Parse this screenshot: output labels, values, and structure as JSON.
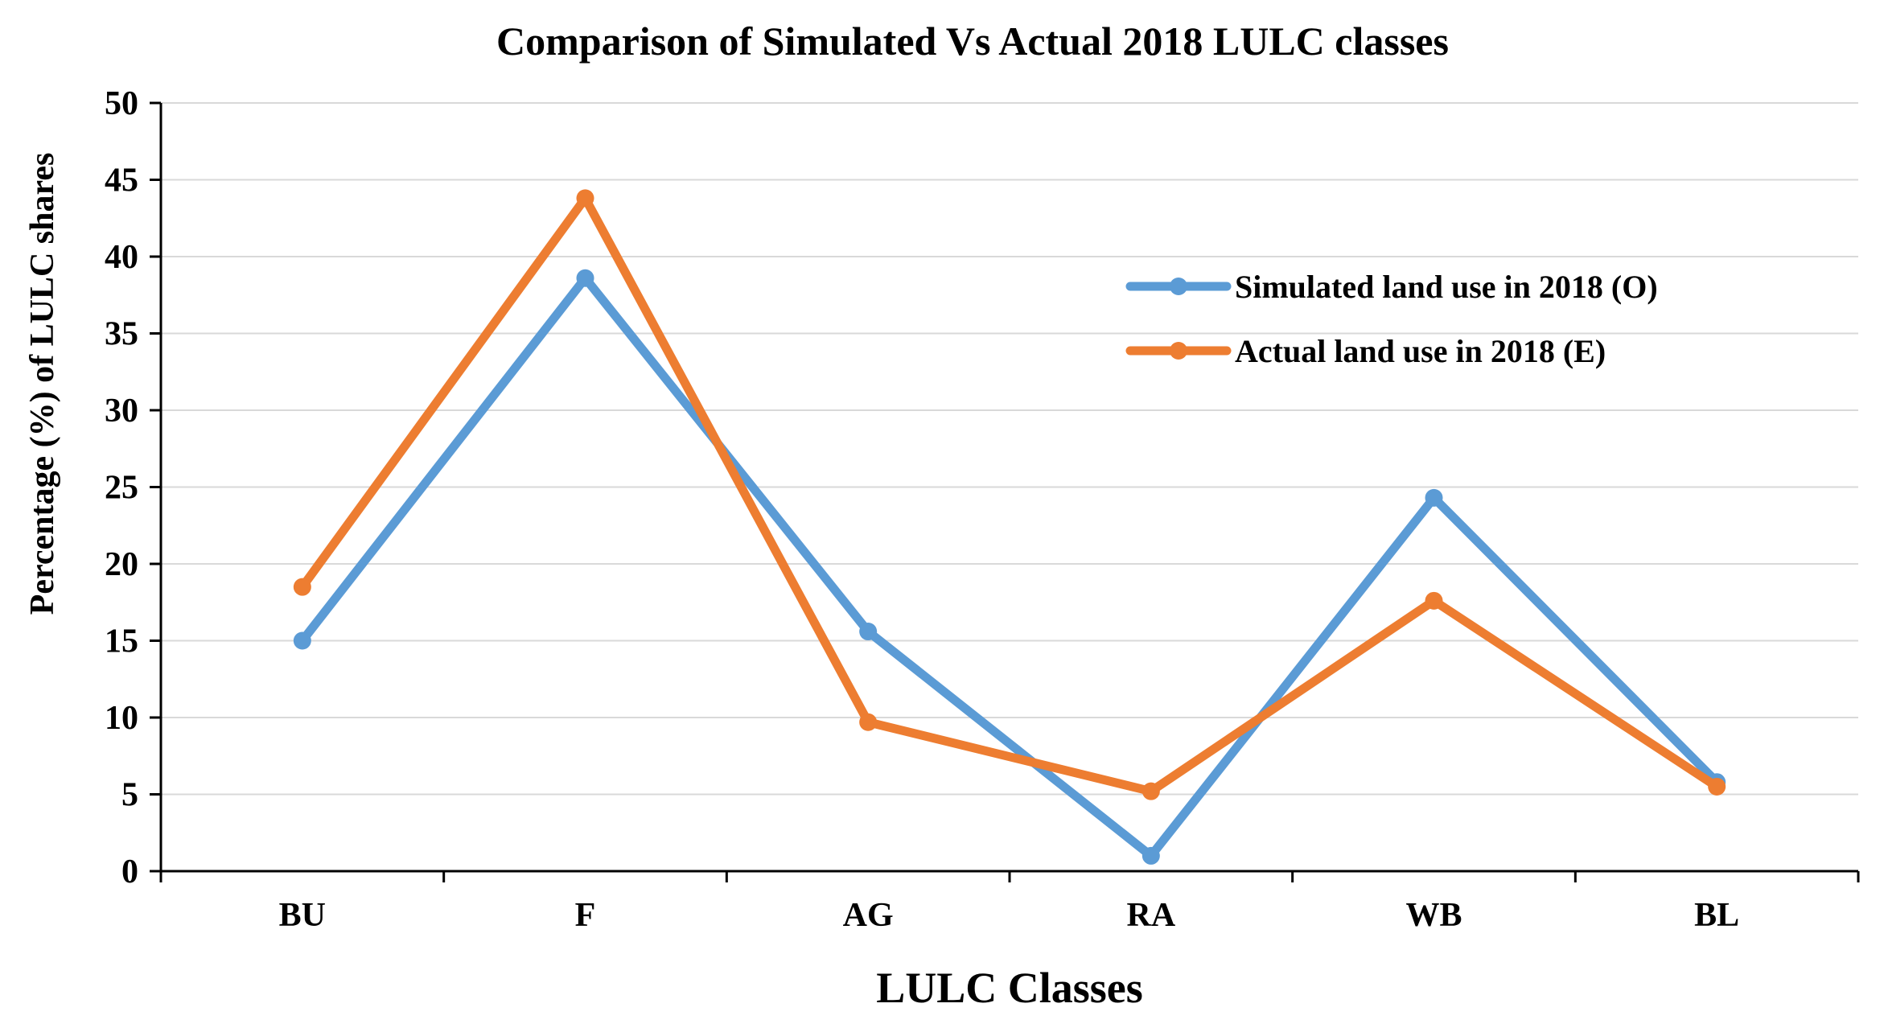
{
  "chart_data": {
    "type": "line",
    "title": "Comparison of Simulated Vs Actual 2018 LULC classes",
    "xlabel": "LULC Classes",
    "ylabel": "Percentage (%) of  LULC shares",
    "categories": [
      "BU",
      "F",
      "AG",
      "RA",
      "WB",
      "BL"
    ],
    "ylim": [
      0,
      50
    ],
    "yticks": [
      0,
      5,
      10,
      15,
      20,
      25,
      30,
      35,
      40,
      45,
      50
    ],
    "grid": true,
    "legend_position": "top-right",
    "series": [
      {
        "name": "Simulated land use in 2018 (O)",
        "color": "#5b9bd5",
        "values": [
          15.0,
          38.6,
          15.6,
          1.0,
          24.3,
          5.8
        ]
      },
      {
        "name": "Actual land use in 2018 (E)",
        "color": "#ed7d31",
        "values": [
          18.5,
          43.8,
          9.7,
          5.2,
          17.6,
          5.5
        ]
      }
    ]
  }
}
